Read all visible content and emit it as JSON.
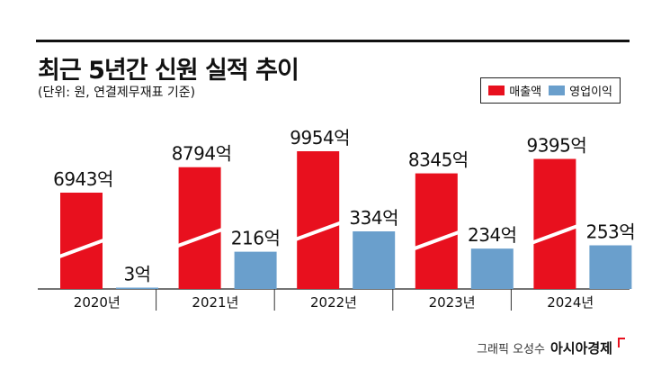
{
  "header": {
    "title": "최근 5년간 신원 실적 추이",
    "subtitle": "(단위: 원, 연결제무재표 기준)"
  },
  "legend": [
    {
      "label": "매출액",
      "color": "#e8101e"
    },
    {
      "label": "영업이익",
      "color": "#6a9fcc"
    }
  ],
  "chart_data": {
    "type": "bar",
    "categories": [
      "2020년",
      "2021년",
      "2022년",
      "2023년",
      "2024년"
    ],
    "series": [
      {
        "name": "매출액",
        "values": [
          6943,
          8794,
          9954,
          8345,
          9395
        ],
        "labels": [
          "6943억",
          "8794억",
          "9954억",
          "8345억",
          "9395억"
        ],
        "color": "#e8101e",
        "broken_axis": true
      },
      {
        "name": "영업이익",
        "values": [
          3,
          216,
          334,
          234,
          253
        ],
        "labels": [
          "3억",
          "216억",
          "334억",
          "234억",
          "253억"
        ],
        "color": "#6a9fcc"
      }
    ],
    "ylabel": "",
    "xlabel": "",
    "grid": false,
    "legend_position": "top-right"
  },
  "credit": {
    "byline": "그래픽 오성수",
    "brand": "아시아경제"
  }
}
